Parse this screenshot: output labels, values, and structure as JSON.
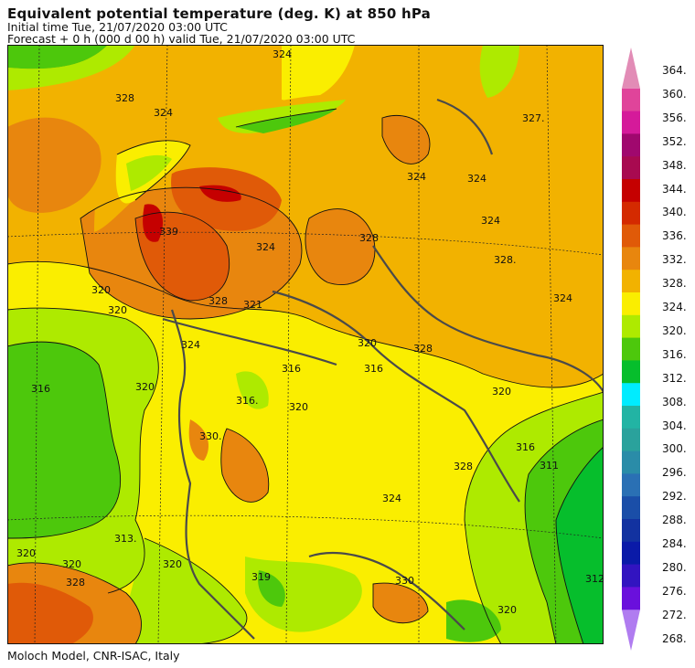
{
  "header": {
    "title": "Equivalent potential temperature (deg. K) at 850 hPa",
    "initial": "Initial time  Tue, 21/07/2020  03:00 UTC",
    "forecast": "Forecast  +   0 h  (000 d 00 h)  valid Tue, 21/07/2020 03:00 UTC"
  },
  "footer": "Moloch Model, CNR-ISAC, Italy",
  "colorbar": {
    "ticks": [
      "364.",
      "360.",
      "356.",
      "352.",
      "348.",
      "344.",
      "340.",
      "336.",
      "332.",
      "328.",
      "324.",
      "320.",
      "316.",
      "312.",
      "308.",
      "304.",
      "300.",
      "296.",
      "292.",
      "288.",
      "284.",
      "280.",
      "276.",
      "272.",
      "268."
    ],
    "colors": [
      "#e28cb6",
      "#e0449a",
      "#d51a9a",
      "#a0086e",
      "#a80a50",
      "#c50000",
      "#d42a00",
      "#e05a08",
      "#e8860e",
      "#f2b200",
      "#faee00",
      "#aeea00",
      "#4dc80c",
      "#06be2c",
      "#00ecff",
      "#22b4a4",
      "#2aa29c",
      "#2a8ca8",
      "#2a70b4",
      "#1a4ea8",
      "#1232a0",
      "#0a1aa8",
      "#3214c0",
      "#6a10dc",
      "#b07cf0"
    ]
  },
  "map_labels": [
    "324",
    "328",
    "324",
    "339",
    "324",
    "328",
    "321",
    "320",
    "320",
    "320",
    "316",
    "316.",
    "330.",
    "313.",
    "320",
    "320",
    "328",
    "320",
    "319",
    "330",
    "320",
    "312",
    "316",
    "311",
    "328",
    "320",
    "324",
    "328.",
    "324",
    "327.",
    "324",
    "324",
    "328",
    "324",
    "320",
    "324",
    "316",
    "316",
    "320",
    "328"
  ]
}
